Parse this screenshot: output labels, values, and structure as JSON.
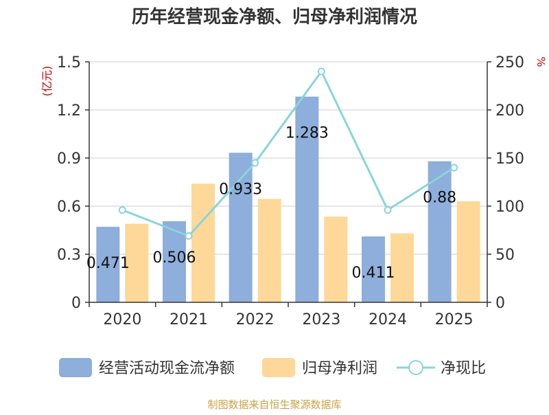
{
  "chart_data": {
    "type": "bar",
    "title": "历年经营现金净额、归母净利润情况",
    "categories": [
      "2020",
      "2021",
      "2022",
      "2023",
      "2024",
      "2025"
    ],
    "y_left": {
      "unit": "(亿元)",
      "range": [
        0,
        1.5
      ],
      "ticks": [
        "0",
        "0.3",
        "0.6",
        "0.9",
        "1.2",
        "1.5"
      ]
    },
    "y_right": {
      "unit": "%",
      "range": [
        0,
        250
      ],
      "ticks": [
        "0",
        "50",
        "100",
        "150",
        "200",
        "250"
      ]
    },
    "grid": true,
    "legend_position": "bottom",
    "series": [
      {
        "name": "经营活动现金流净额",
        "type": "bar",
        "axis": "left",
        "color": "#8eaedb",
        "values": [
          0.471,
          0.506,
          0.933,
          1.283,
          0.411,
          0.88
        ],
        "labels": [
          "0.471",
          "0.506",
          "0.933",
          "1.283",
          "0.411",
          "0.88"
        ]
      },
      {
        "name": "归母净利润",
        "type": "bar",
        "axis": "left",
        "color": "#fed898",
        "values": [
          0.49,
          0.74,
          0.645,
          0.535,
          0.43,
          0.63
        ]
      },
      {
        "name": "净现比",
        "type": "line",
        "axis": "right",
        "color": "#87d5dc",
        "values": [
          96,
          69,
          145,
          240,
          96,
          140
        ]
      }
    ]
  },
  "footer": {
    "source": "制图数据来自恒生聚源数据库"
  }
}
